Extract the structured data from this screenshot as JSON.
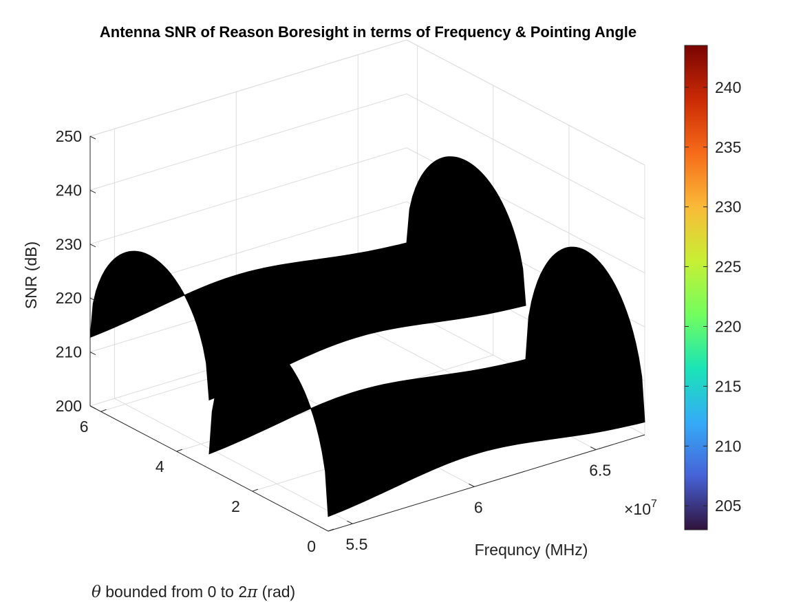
{
  "chart_data": {
    "type": "surface",
    "title": "Antenna SNR of Reason Boresight in terms of Frequency & Pointing Angle",
    "xlabel": "Frequncy (MHz)",
    "ylabel_prefix": "θ bounded from 0 to 2",
    "ylabel_pi": "π",
    "ylabel_suffix": " (rad)",
    "zlabel": "SNR (dB)",
    "x_ticks": [
      "5.5",
      "6",
      "6.5"
    ],
    "x_tick_values": [
      55000000,
      60000000,
      65000000
    ],
    "x_exponent_prefix": "×10",
    "x_exponent": "7",
    "y_ticks": [
      "0",
      "2",
      "4",
      "6"
    ],
    "y_tick_values": [
      0,
      2,
      4,
      6
    ],
    "z_ticks": [
      "200",
      "210",
      "220",
      "230",
      "240",
      "250"
    ],
    "z_tick_values": [
      200,
      210,
      220,
      230,
      240,
      250
    ],
    "xlim": [
      54000000,
      67000000
    ],
    "ylim": [
      0,
      6.2832
    ],
    "zlim": [
      200,
      250
    ],
    "surface_color": "#000000",
    "surface_lobes": [
      {
        "theta_start": 0.0,
        "theta_end": 3.1416,
        "snr_edge": 202,
        "snr_peak": 228
      },
      {
        "theta_start": 3.1416,
        "theta_end": 6.2832,
        "snr_edge": 212,
        "snr_peak": 233
      }
    ],
    "colorbar": {
      "colormap": "turbo",
      "range": [
        203,
        243.5
      ],
      "ticks": [
        "205",
        "210",
        "215",
        "220",
        "225",
        "230",
        "235",
        "240"
      ],
      "tick_values": [
        205,
        210,
        215,
        220,
        225,
        230,
        235,
        240
      ],
      "colors": [
        "#30123b",
        "#4662d7",
        "#35abf8",
        "#1ae4b6",
        "#72fe5e",
        "#c8ef34",
        "#faba39",
        "#f66b19",
        "#ca2a04",
        "#7a0403"
      ]
    }
  }
}
